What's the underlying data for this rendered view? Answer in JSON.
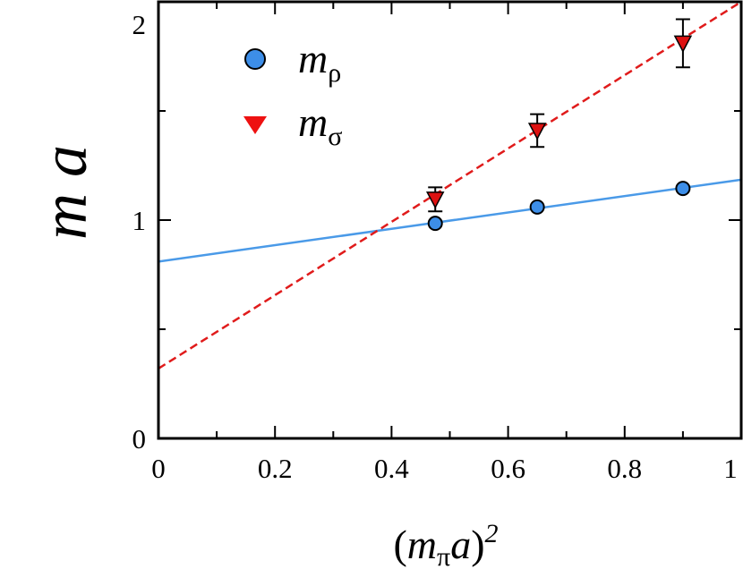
{
  "chart_data": {
    "type": "scatter",
    "title": "",
    "xlabel": {
      "open": "(",
      "m": "m",
      "sub": "π",
      "a": "a",
      "close": ")",
      "sup": "2"
    },
    "ylabel": "m a",
    "xlim": [
      0,
      1
    ],
    "ylim": [
      0,
      2
    ],
    "xticks": [
      {
        "value": 0,
        "label": "0"
      },
      {
        "value": 0.2,
        "label": "0.2"
      },
      {
        "value": 0.4,
        "label": "0.4"
      },
      {
        "value": 0.6,
        "label": "0.6"
      },
      {
        "value": 0.8,
        "label": "0.8"
      },
      {
        "value": 1,
        "label": "1"
      }
    ],
    "yticks": [
      {
        "value": 0,
        "label": "0"
      },
      {
        "value": 1,
        "label": "1"
      },
      {
        "value": 2,
        "label": "2"
      }
    ],
    "minor_step_x": 0.1,
    "minor_step_y": 0.5,
    "legend_position": "top-left",
    "series": [
      {
        "key": "rho",
        "name": "m",
        "subscript": "ρ",
        "marker": "circle",
        "color": "#3d8ee8",
        "edge": "#000000",
        "points": [
          {
            "x": 0.475,
            "y": 0.985,
            "err": 0.0
          },
          {
            "x": 0.65,
            "y": 1.06,
            "err": 0.0
          },
          {
            "x": 0.9,
            "y": 1.145,
            "err": 0.0
          }
        ],
        "fit": {
          "intercept": 0.81,
          "slope": 0.375,
          "style": "solid",
          "color": "#4a9ae8"
        }
      },
      {
        "key": "sigma",
        "name": "m",
        "subscript": "σ",
        "marker": "triangle-down",
        "color": "#dd1111",
        "edge": "#000000",
        "points": [
          {
            "x": 0.475,
            "y": 1.095,
            "err": 0.055
          },
          {
            "x": 0.65,
            "y": 1.41,
            "err": 0.075
          },
          {
            "x": 0.9,
            "y": 1.81,
            "err": 0.11
          }
        ],
        "fit": {
          "intercept": 0.32,
          "slope": 1.68,
          "style": "dashed",
          "color": "#e01b1b"
        }
      }
    ]
  }
}
